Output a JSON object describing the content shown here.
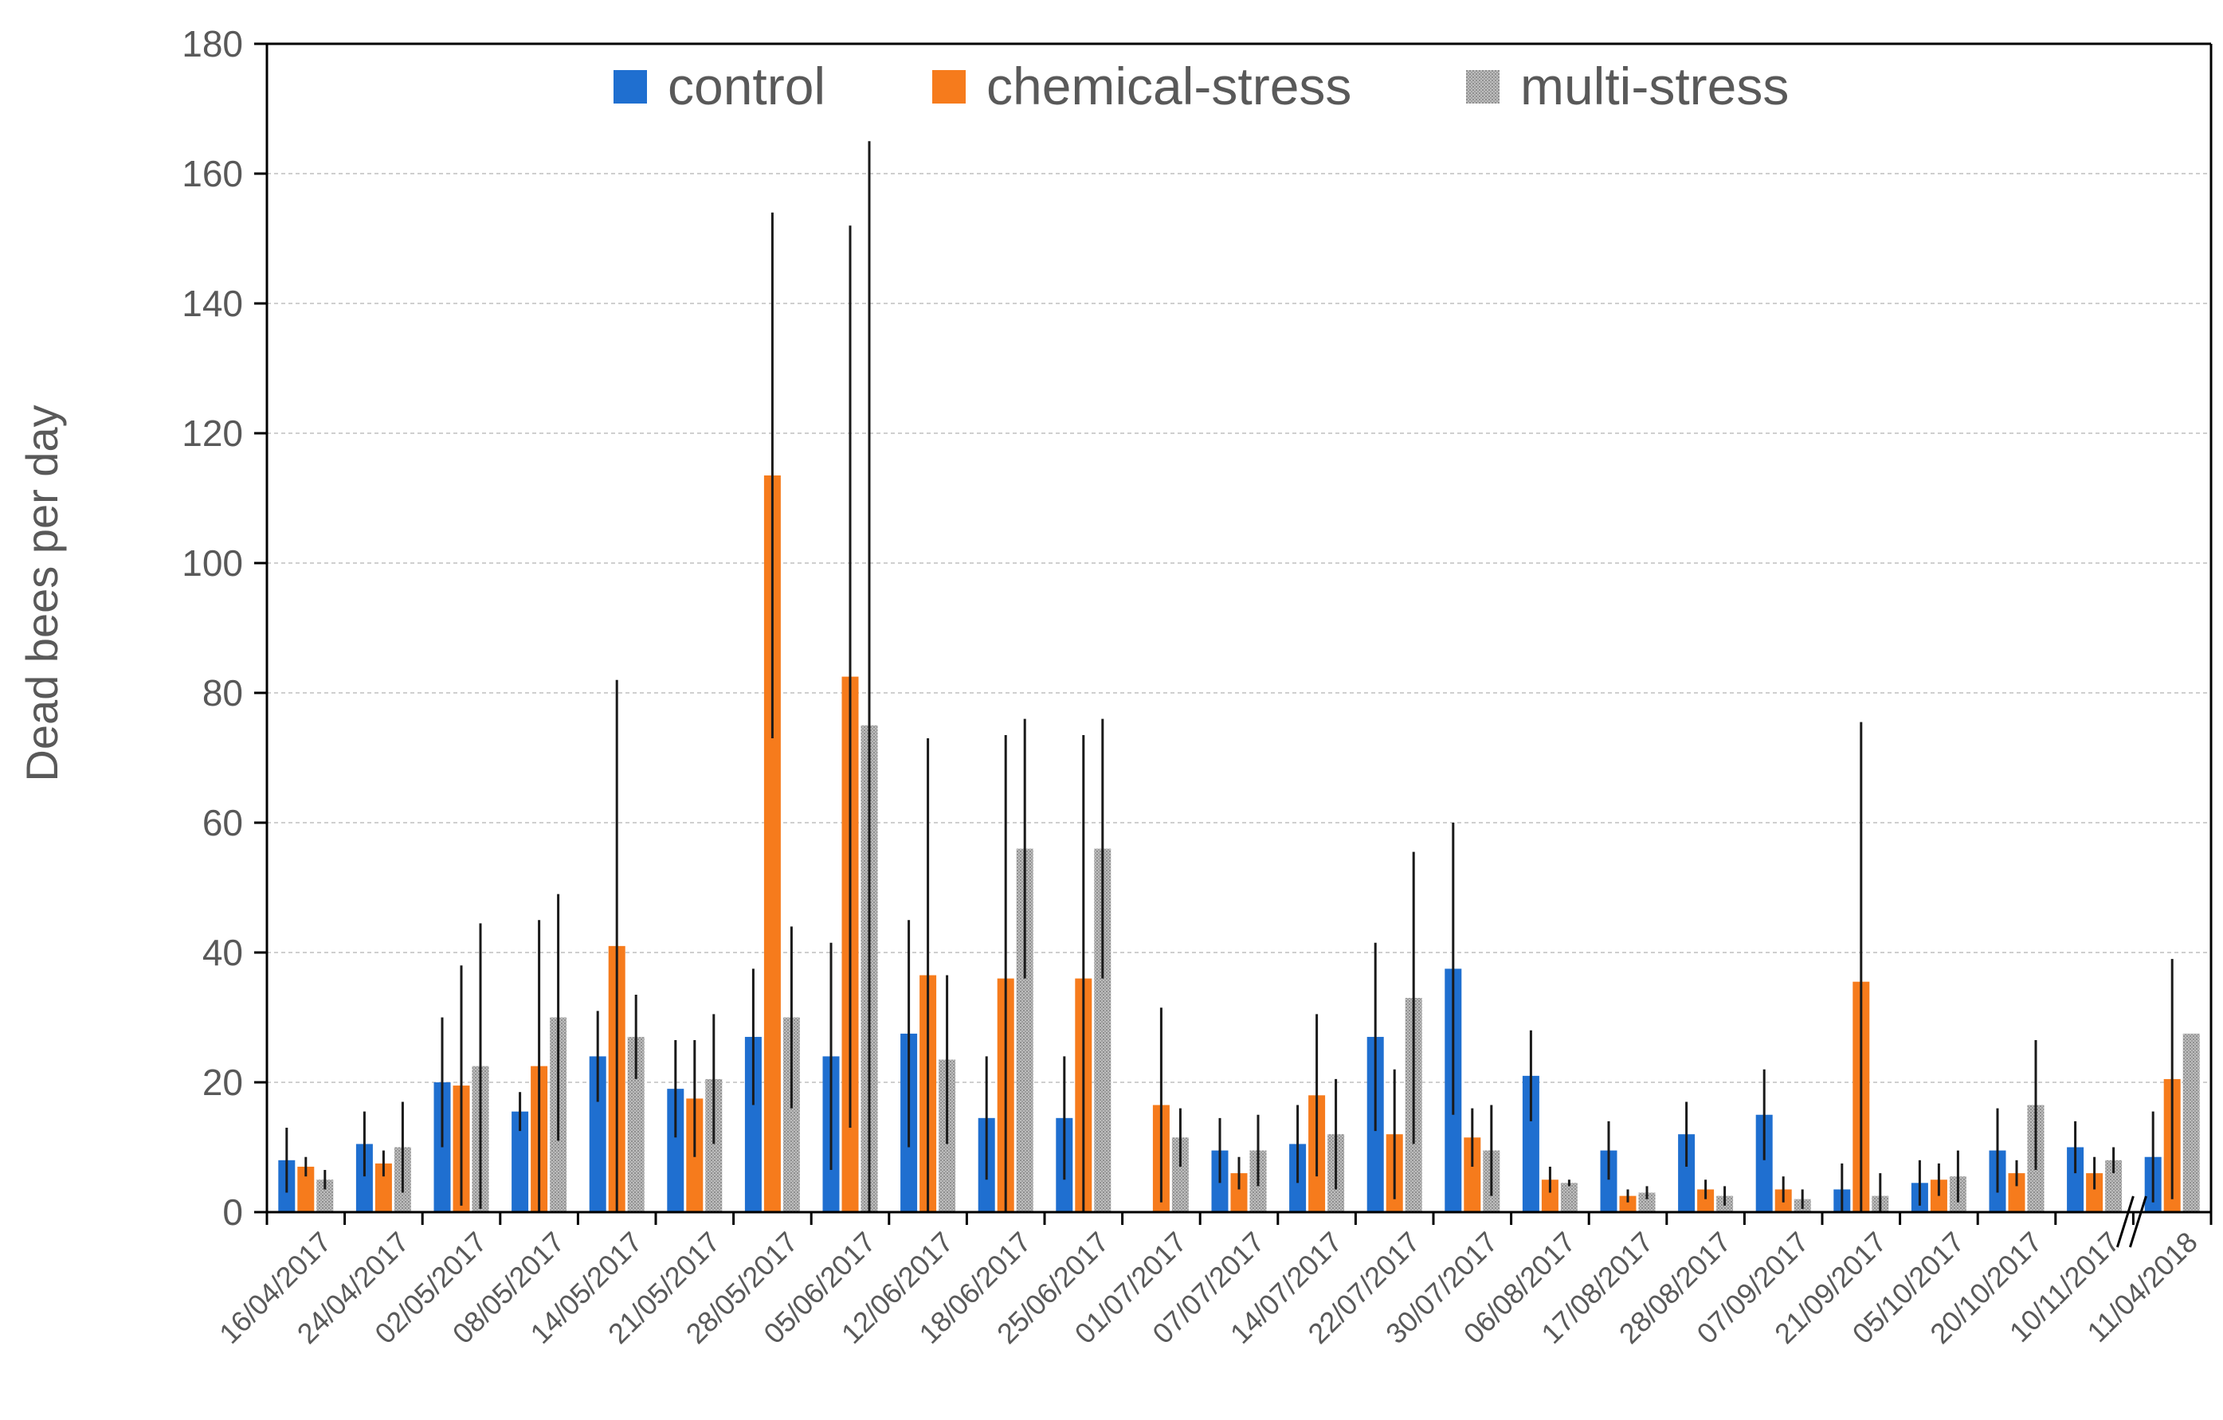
{
  "chart_data": {
    "type": "bar",
    "title": "",
    "xlabel": "",
    "ylabel": "Dead bees per day",
    "ylim": [
      0,
      180
    ],
    "yticks": [
      0,
      20,
      40,
      60,
      80,
      100,
      120,
      140,
      160,
      180
    ],
    "grid": true,
    "legend_position": "top-center",
    "axis_break_between": [
      "10/11/2017",
      "11/04/2018"
    ],
    "categories": [
      "16/04/2017",
      "24/04/2017",
      "02/05/2017",
      "08/05/2017",
      "14/05/2017",
      "21/05/2017",
      "28/05/2017",
      "05/06/2017",
      "12/06/2017",
      "18/06/2017",
      "25/06/2017",
      "01/07/2017",
      "07/07/2017",
      "14/07/2017",
      "22/07/2017",
      "30/07/2017",
      "06/08/2017",
      "17/08/2017",
      "28/08/2017",
      "07/09/2017",
      "21/09/2017",
      "05/10/2017",
      "20/10/2017",
      "10/11/2017",
      "11/04/2018"
    ],
    "series": [
      {
        "name": "control",
        "color": "#1f6fd0",
        "values": [
          8,
          10.5,
          20,
          15.5,
          24,
          19,
          27,
          24,
          27.5,
          14.5,
          14.5,
          null,
          9.5,
          10.5,
          27,
          37.5,
          21,
          9.5,
          12,
          15,
          3.5,
          4.5,
          9.5,
          10,
          8.5
        ],
        "errors": [
          5,
          5,
          10,
          3,
          7,
          7.5,
          10.5,
          17.5,
          17.5,
          9.5,
          9.5,
          null,
          5,
          6,
          14.5,
          22.5,
          7,
          4.5,
          5,
          7,
          4,
          3.5,
          6.5,
          4,
          7
        ]
      },
      {
        "name": "chemical-stress",
        "color": "#f67b1c",
        "values": [
          7,
          7.5,
          19.5,
          22.5,
          41,
          17.5,
          113.5,
          82.5,
          36.5,
          36,
          36,
          16.5,
          6,
          18,
          12,
          11.5,
          5,
          2.5,
          3.5,
          3.5,
          35.5,
          5,
          6,
          6,
          20.5
        ],
        "errors": [
          1.5,
          2,
          18.5,
          22.5,
          41,
          9,
          40.5,
          69.5,
          36.5,
          37.5,
          37.5,
          15,
          2.5,
          12.5,
          10,
          4.5,
          2,
          1,
          1.5,
          2,
          40,
          2.5,
          2,
          2.5,
          18.5
        ]
      },
      {
        "name": "multi-stress",
        "color": "#a6a6a6",
        "values": [
          5,
          10,
          22.5,
          30,
          27,
          20.5,
          30,
          75,
          23.5,
          56,
          56,
          11.5,
          9.5,
          12,
          33,
          9.5,
          4.5,
          3,
          2.5,
          2,
          2.5,
          5.5,
          16.5,
          8,
          27.5
        ],
        "errors": [
          1.5,
          7,
          22,
          19,
          6.5,
          10,
          14,
          90,
          13,
          20,
          20,
          4.5,
          5.5,
          8.5,
          22.5,
          7,
          0.5,
          1,
          1.5,
          1.5,
          3.5,
          4,
          10,
          2,
          0
        ]
      }
    ]
  }
}
